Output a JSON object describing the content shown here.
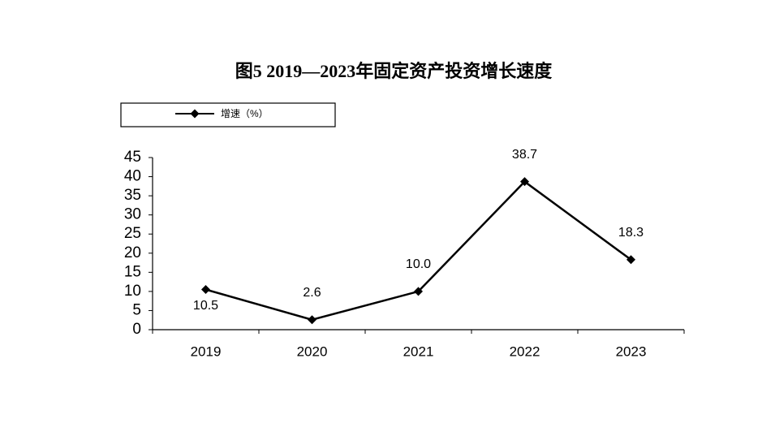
{
  "chart_data": {
    "type": "line",
    "title": "图5  2019—2023年固定资产投资增长速度",
    "categories": [
      "2019",
      "2020",
      "2021",
      "2022",
      "2023"
    ],
    "series": [
      {
        "name": "增速（%）",
        "color": "#000000",
        "values": [
          10.5,
          2.6,
          10.0,
          38.7,
          18.3
        ],
        "value_labels": [
          "10.5",
          "2.6",
          "10.0",
          "38.7",
          "18.3"
        ]
      }
    ],
    "ylim": [
      0,
      45
    ],
    "yticks": [
      0,
      5,
      10,
      15,
      20,
      25,
      30,
      35,
      40,
      45
    ],
    "grid": false,
    "legend": "top-left"
  }
}
